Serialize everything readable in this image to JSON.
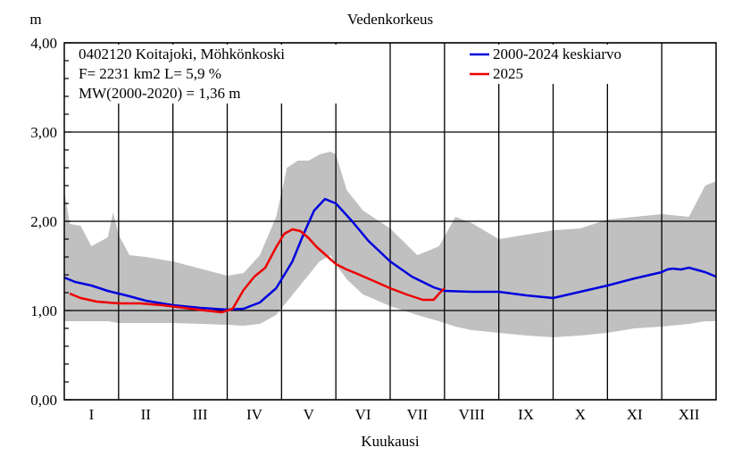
{
  "chart_data": {
    "type": "line",
    "title": "Vedenkorkeus",
    "ylabel": "m",
    "xlabel": "Kuukausi",
    "ylim": [
      0,
      4
    ],
    "xlim": [
      0,
      12
    ],
    "y_ticks": [
      0,
      1,
      2,
      3,
      4
    ],
    "y_tick_labels": [
      "0,00",
      "1,00",
      "2,00",
      "3,00",
      "4,00"
    ],
    "months": [
      "I",
      "II",
      "III",
      "IV",
      "V",
      "VI",
      "VII",
      "VIII",
      "IX",
      "X",
      "XI",
      "XII"
    ],
    "grid": true,
    "legend_position": "top-right",
    "station_info": [
      "0402120 Koitajoki, Möhkönkoski",
      "F=   2231 km2 L=  5,9 %",
      "MW(2000-2020) = 1,36 m"
    ],
    "series": [
      {
        "name": "2000-2024 keskiarvo",
        "color": "#0000dd",
        "x": [
          0,
          0.2,
          0.5,
          0.8,
          1.2,
          1.5,
          2.0,
          2.5,
          3.0,
          3.3,
          3.6,
          3.9,
          4.2,
          4.4,
          4.6,
          4.8,
          5.0,
          5.3,
          5.6,
          6.0,
          6.4,
          6.8,
          7.0,
          7.5,
          8.0,
          8.5,
          9.0,
          9.5,
          10.0,
          10.5,
          11.0,
          11.1,
          11.2,
          11.35,
          11.5,
          11.8,
          12.0
        ],
        "y": [
          1.37,
          1.32,
          1.28,
          1.22,
          1.16,
          1.11,
          1.06,
          1.03,
          1.01,
          1.02,
          1.09,
          1.25,
          1.55,
          1.85,
          2.12,
          2.25,
          2.2,
          2.0,
          1.78,
          1.55,
          1.38,
          1.26,
          1.22,
          1.21,
          1.21,
          1.17,
          1.14,
          1.21,
          1.28,
          1.36,
          1.43,
          1.46,
          1.47,
          1.46,
          1.48,
          1.43,
          1.38
        ]
      },
      {
        "name": "2025",
        "color": "#ee0000",
        "x": [
          0.1,
          0.3,
          0.6,
          1.0,
          1.4,
          1.8,
          2.2,
          2.6,
          2.9,
          3.1,
          3.3,
          3.5,
          3.7,
          3.9,
          4.05,
          4.2,
          4.35,
          4.5,
          4.65,
          4.8,
          5.0,
          5.2,
          5.4,
          5.7,
          6.0,
          6.3,
          6.6,
          6.8,
          6.9,
          7.0
        ],
        "y": [
          1.19,
          1.14,
          1.1,
          1.08,
          1.08,
          1.06,
          1.03,
          1.0,
          0.98,
          1.02,
          1.23,
          1.38,
          1.48,
          1.71,
          1.86,
          1.91,
          1.89,
          1.81,
          1.71,
          1.63,
          1.52,
          1.46,
          1.41,
          1.33,
          1.25,
          1.18,
          1.12,
          1.12,
          1.19,
          1.25
        ]
      }
    ],
    "range_band": {
      "color": "#c0c0c0",
      "x": [
        0,
        0.1,
        0.3,
        0.5,
        0.8,
        0.9,
        1.0,
        1.2,
        1.5,
        2.0,
        2.5,
        3.0,
        3.3,
        3.6,
        3.9,
        4.1,
        4.3,
        4.5,
        4.7,
        4.9,
        5.0,
        5.2,
        5.5,
        6.0,
        6.5,
        6.9,
        7.2,
        7.5,
        8.0,
        8.5,
        9.0,
        9.5,
        10.0,
        10.5,
        11.0,
        11.5,
        11.8,
        12.0
      ],
      "high": [
        2.35,
        1.97,
        1.95,
        1.72,
        1.82,
        2.1,
        1.85,
        1.62,
        1.6,
        1.55,
        1.47,
        1.39,
        1.42,
        1.62,
        2.05,
        2.6,
        2.68,
        2.68,
        2.75,
        2.78,
        2.75,
        2.35,
        2.12,
        1.92,
        1.62,
        1.72,
        2.05,
        1.98,
        1.8,
        1.85,
        1.9,
        1.92,
        2.02,
        2.05,
        2.08,
        2.05,
        2.4,
        2.45
      ],
      "low": [
        0.88,
        0.88,
        0.88,
        0.88,
        0.88,
        0.87,
        0.86,
        0.86,
        0.86,
        0.86,
        0.85,
        0.84,
        0.83,
        0.85,
        0.95,
        1.1,
        1.25,
        1.4,
        1.55,
        1.62,
        1.52,
        1.35,
        1.18,
        1.05,
        0.95,
        0.88,
        0.82,
        0.78,
        0.75,
        0.72,
        0.7,
        0.72,
        0.75,
        0.8,
        0.82,
        0.85,
        0.88,
        0.88
      ]
    }
  }
}
